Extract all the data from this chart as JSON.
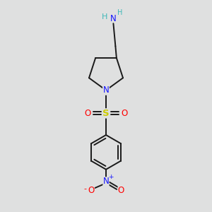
{
  "bg_color": "#dfe0e0",
  "line_color": "#1a1a1a",
  "N_color": "#1414ff",
  "O_color": "#ff0000",
  "S_color": "#cccc00",
  "H_color": "#3db8b8",
  "line_width": 1.4,
  "figsize": [
    3.0,
    3.0
  ],
  "dpi": 100,
  "xlim": [
    0,
    10
  ],
  "ylim": [
    0,
    10
  ]
}
